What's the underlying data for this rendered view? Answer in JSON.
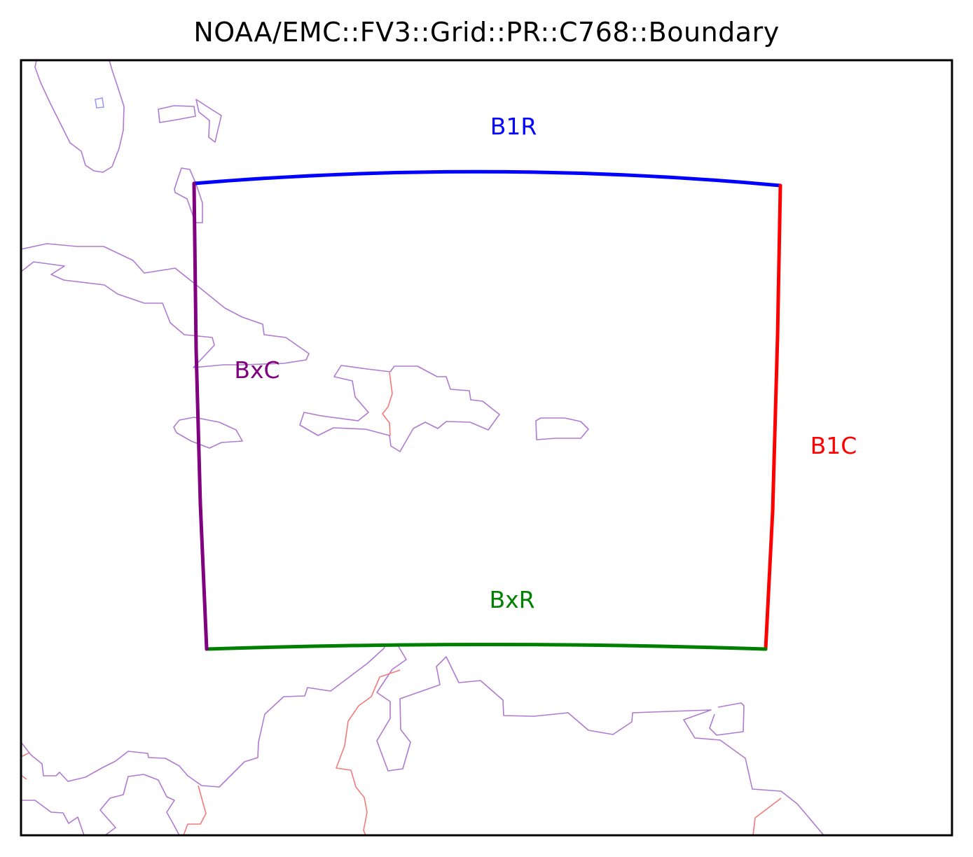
{
  "title": "NOAA/EMC::FV3::Grid::PR::C768::Boundary",
  "boundaries": [
    {
      "id": "b1r",
      "label": "B1R",
      "color": "#0000ff"
    },
    {
      "id": "b1c",
      "label": "B1C",
      "color": "#ff0000"
    },
    {
      "id": "bxr",
      "label": "BxR",
      "color": "#008000"
    },
    {
      "id": "bxc",
      "label": "BxC",
      "color": "#800080"
    }
  ],
  "colors": {
    "coastline": "#b07ad0",
    "political_border": "#f47a7a",
    "lake": "#9b9bf0",
    "frame": "#000000"
  }
}
